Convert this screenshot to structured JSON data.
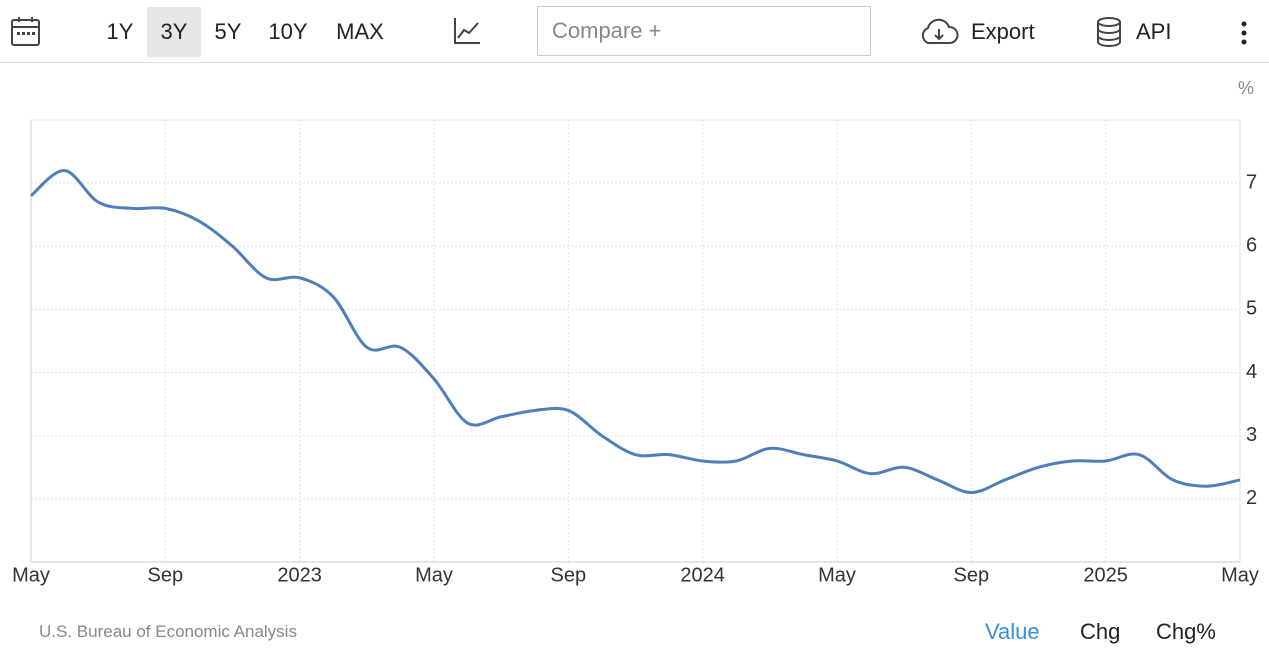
{
  "toolbar": {
    "ranges": [
      "1Y",
      "3Y",
      "5Y",
      "10Y",
      "MAX"
    ],
    "compare": "Compare +",
    "export": "Export",
    "api": "API"
  },
  "footer": {
    "source": "U.S. Bureau of Economic Analysis",
    "tabs": [
      "Value",
      "Chg",
      "Chg%"
    ]
  },
  "chart_data": {
    "type": "line",
    "unit_label": "%",
    "x": [
      "2022-05",
      "2022-06",
      "2022-07",
      "2022-08",
      "2022-09",
      "2022-10",
      "2022-11",
      "2022-12",
      "2023-01",
      "2023-02",
      "2023-03",
      "2023-04",
      "2023-05",
      "2023-06",
      "2023-07",
      "2023-08",
      "2023-09",
      "2023-10",
      "2023-11",
      "2023-12",
      "2024-01",
      "2024-02",
      "2024-03",
      "2024-04",
      "2024-05",
      "2024-06",
      "2024-07",
      "2024-08",
      "2024-09",
      "2024-10",
      "2024-11",
      "2024-12",
      "2025-01",
      "2025-02",
      "2025-03",
      "2025-04",
      "2025-05"
    ],
    "series": [
      {
        "color": "#4f7fba",
        "values": [
          6.8,
          7.2,
          6.7,
          6.6,
          6.6,
          6.4,
          6.0,
          5.5,
          5.5,
          5.2,
          4.4,
          4.4,
          3.9,
          3.2,
          3.3,
          3.4,
          3.4,
          3.0,
          2.7,
          2.7,
          2.6,
          2.6,
          2.8,
          2.7,
          2.6,
          2.4,
          2.5,
          2.3,
          2.1,
          2.3,
          2.5,
          2.6,
          2.6,
          2.7,
          2.3,
          2.2,
          2.3
        ]
      }
    ],
    "xlim": [
      "2022-05",
      "2025-05"
    ],
    "xticks": [
      {
        "value": "2022-05",
        "label": "May"
      },
      {
        "value": "2022-09",
        "label": "Sep"
      },
      {
        "value": "2023-01",
        "label": "2023"
      },
      {
        "value": "2023-05",
        "label": "May"
      },
      {
        "value": "2023-09",
        "label": "Sep"
      },
      {
        "value": "2024-01",
        "label": "2024"
      },
      {
        "value": "2024-05",
        "label": "May"
      },
      {
        "value": "2024-09",
        "label": "Sep"
      },
      {
        "value": "2025-01",
        "label": "2025"
      },
      {
        "value": "2025-05",
        "label": "May"
      }
    ],
    "ylim": [
      1,
      8
    ],
    "yticks": [
      2,
      3,
      4,
      5,
      6,
      7
    ],
    "grid": true
  }
}
